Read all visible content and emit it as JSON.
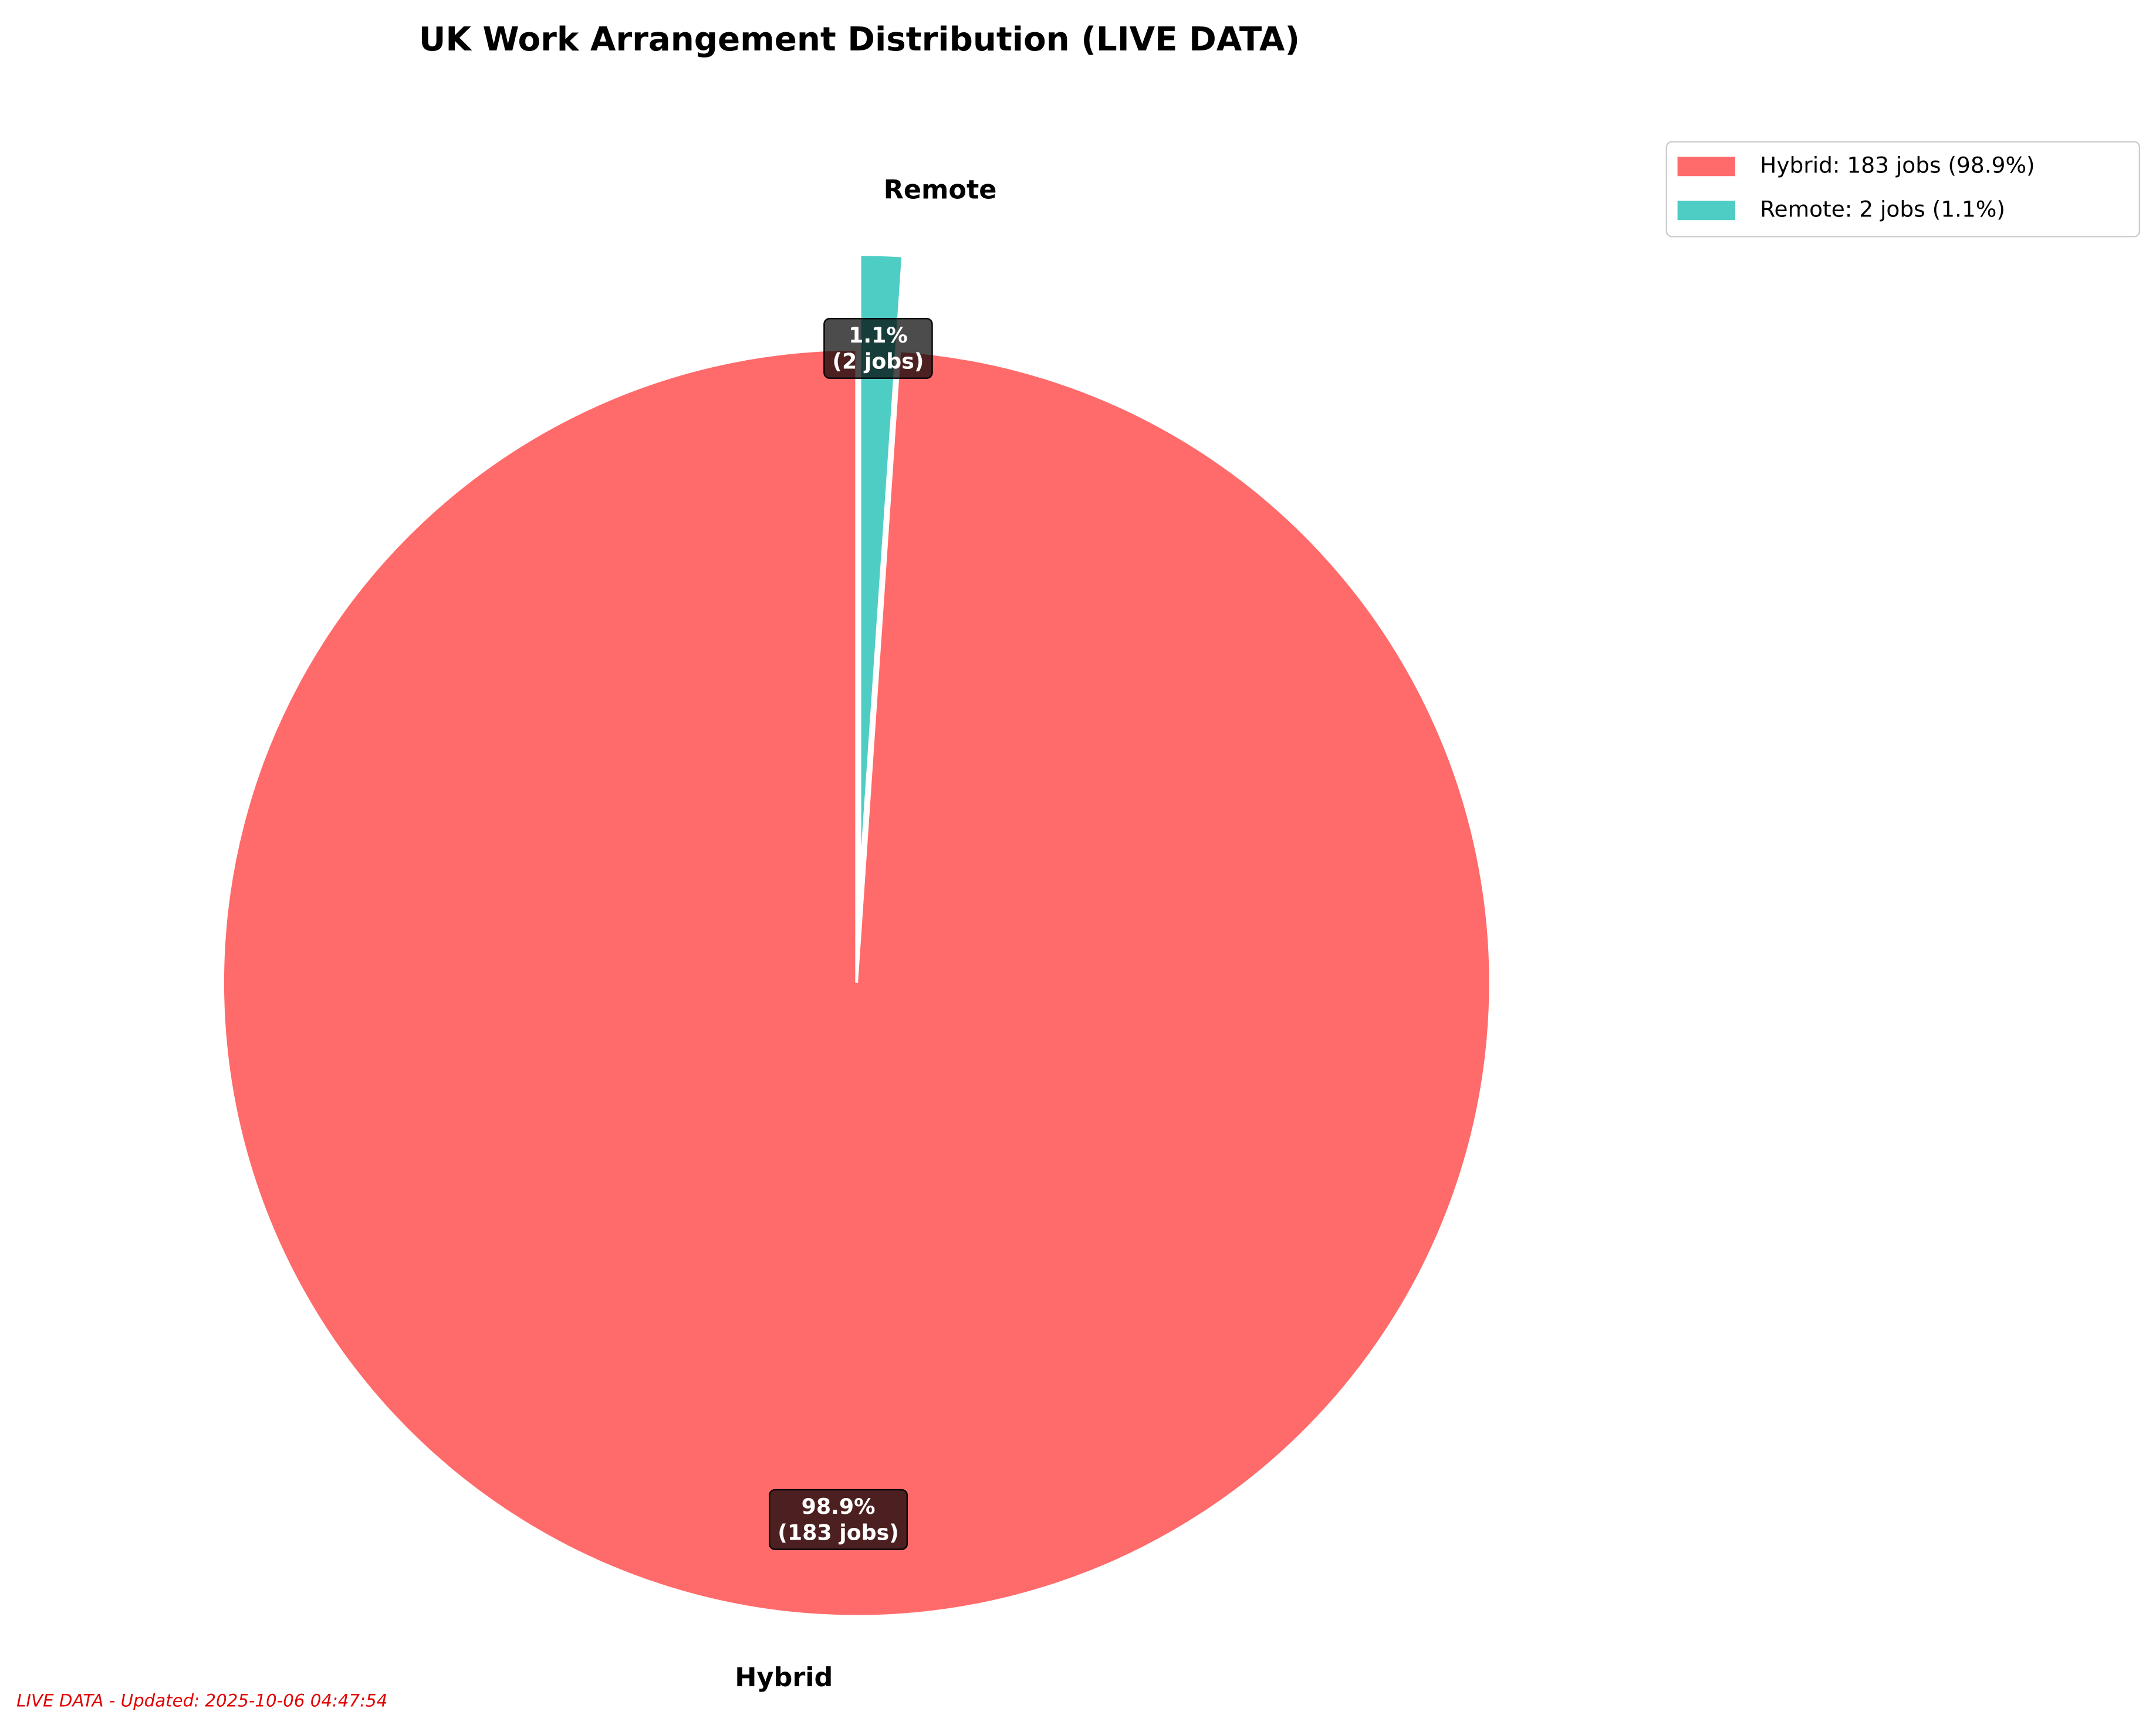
{
  "chart_data": {
    "type": "pie",
    "title": "UK Work Arrangement Distribution (LIVE DATA)",
    "categories": [
      "Hybrid",
      "Remote"
    ],
    "values": [
      183,
      2
    ],
    "value_labels": [
      [
        "98.9%",
        "(183 jobs)"
      ],
      [
        "1.1%",
        "(2 jobs)"
      ]
    ],
    "colors": [
      "#ff6b6b",
      "#4ecdc4"
    ],
    "legend_labels": [
      "Hybrid: 183 jobs (98.9%)",
      "Remote: 2 jobs (1.1%)"
    ],
    "legend": "upper right",
    "footnote": "LIVE DATA - Updated: 2025-10-06 04:47:54"
  }
}
